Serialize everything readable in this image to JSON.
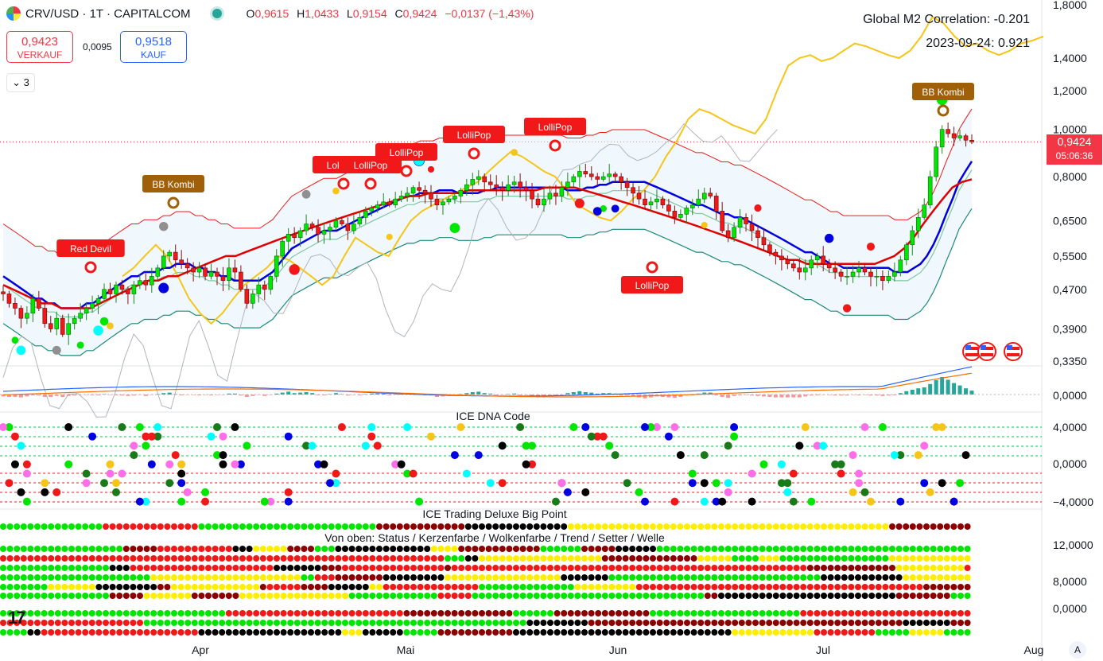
{
  "header": {
    "symbol": "CRV/USD · 1T · CAPITALCOM",
    "ohlc": [
      {
        "k": "O",
        "v": "0,9615"
      },
      {
        "k": "H",
        "v": "1,0433"
      },
      {
        "k": "L",
        "v": "0,9154"
      },
      {
        "k": "C",
        "v": "0,9424"
      },
      {
        "k": "",
        "v": "−0,0137 (−1,43%)"
      }
    ]
  },
  "trade": {
    "sell_price": "0,9423",
    "sell_label": "VERKAUF",
    "spread": "0,0095",
    "buy_price": "0,9518",
    "buy_label": "KAUF"
  },
  "indicator_toggle": "3",
  "m2": {
    "line1": "Global M2 Correlation: -0.201",
    "line2": "2023-09-24: 0.921"
  },
  "current_price": {
    "value": "0,9424",
    "countdown": "05:06:36"
  },
  "panes": {
    "dna_title": "ICE DNA Code",
    "deluxe_title": "ICE Trading Deluxe Big Point",
    "deluxe_sub": "Von oben: Status / Kerzenfarbe / Wolkenfarbe / Trend / Setter / Welle"
  },
  "axis_right": {
    "price": [
      "1,8000",
      "1,4000",
      "1,2000",
      "1,0000",
      "0,8000",
      "0,6500",
      "0,5500",
      "0,4700",
      "0,3900",
      "0,3350"
    ],
    "macd": [
      "0,0000"
    ],
    "dna": [
      "4,0000",
      "0,0000",
      "−4,0000"
    ],
    "deluxe": [
      "12,0000",
      "8,0000",
      "0,0000"
    ]
  },
  "months": [
    "Apr",
    "Mai",
    "Jun",
    "Jul",
    "Aug"
  ],
  "labels": [
    {
      "text": "BB Kombi",
      "color": "#a0600a"
    },
    {
      "text": "Red Devil",
      "color": "#f01818"
    },
    {
      "text": "LolliPop",
      "color": "#f01818"
    },
    {
      "text": "LolliPop",
      "color": "#f01818"
    },
    {
      "text": "LolliPop",
      "color": "#f01818"
    },
    {
      "text": "LolliPop",
      "color": "#f01818"
    },
    {
      "text": "LolliPop",
      "color": "#f01818"
    },
    {
      "text": "LolliPop",
      "color": "#f01818"
    },
    {
      "text": "BB Kombi",
      "color": "#a0600a"
    }
  ],
  "colors": {
    "up": "#00e600",
    "down": "#f01818",
    "blue_line": "#0000e0",
    "red_line": "#e00000",
    "gold_line": "#f5c518",
    "gray_line": "#b0b4bc"
  },
  "chart_data": {
    "type": "candlestick",
    "price_scale": "log",
    "x_range": [
      "2024-03-06",
      "2024-07-23"
    ],
    "ylim": [
      0.335,
      1.8
    ],
    "last_candle": {
      "open": 0.9615,
      "high": 1.0433,
      "low": 0.9154,
      "close": 0.9424
    },
    "close": [
      0.46,
      0.44,
      0.43,
      0.41,
      0.42,
      0.45,
      0.43,
      0.4,
      0.39,
      0.41,
      0.38,
      0.4,
      0.41,
      0.42,
      0.43,
      0.44,
      0.45,
      0.47,
      0.46,
      0.48,
      0.47,
      0.46,
      0.48,
      0.49,
      0.48,
      0.5,
      0.52,
      0.55,
      0.56,
      0.54,
      0.53,
      0.52,
      0.51,
      0.52,
      0.5,
      0.51,
      0.5,
      0.49,
      0.52,
      0.51,
      0.47,
      0.44,
      0.46,
      0.48,
      0.47,
      0.5,
      0.55,
      0.59,
      0.61,
      0.6,
      0.62,
      0.64,
      0.63,
      0.61,
      0.62,
      0.63,
      0.65,
      0.64,
      0.62,
      0.64,
      0.66,
      0.68,
      0.69,
      0.7,
      0.71,
      0.7,
      0.72,
      0.73,
      0.74,
      0.76,
      0.75,
      0.74,
      0.72,
      0.7,
      0.71,
      0.72,
      0.73,
      0.75,
      0.77,
      0.79,
      0.8,
      0.78,
      0.77,
      0.76,
      0.75,
      0.77,
      0.78,
      0.76,
      0.75,
      0.72,
      0.7,
      0.72,
      0.74,
      0.73,
      0.76,
      0.78,
      0.8,
      0.82,
      0.81,
      0.8,
      0.79,
      0.8,
      0.81,
      0.8,
      0.78,
      0.76,
      0.74,
      0.72,
      0.7,
      0.71,
      0.72,
      0.7,
      0.68,
      0.66,
      0.67,
      0.69,
      0.7,
      0.72,
      0.74,
      0.73,
      0.68,
      0.62,
      0.6,
      0.63,
      0.66,
      0.64,
      0.62,
      0.6,
      0.58,
      0.56,
      0.55,
      0.54,
      0.53,
      0.52,
      0.51,
      0.52,
      0.54,
      0.55,
      0.53,
      0.52,
      0.51,
      0.5,
      0.5,
      0.51,
      0.52,
      0.51,
      0.5,
      0.5,
      0.49,
      0.5,
      0.51,
      0.54,
      0.58,
      0.62,
      0.66,
      0.7,
      0.8,
      0.92,
      1.0,
      0.98,
      0.96,
      0.97,
      0.95,
      0.9424
    ],
    "series": [
      {
        "name": "",
        "values": [
          0.5,
          0.49,
          0.48,
          0.47,
          0.46,
          0.45,
          0.45,
          0.44,
          0.44,
          0.43,
          0.43,
          0.43,
          0.43,
          0.44,
          0.44,
          0.45,
          0.46,
          0.47,
          0.48,
          0.49,
          0.5,
          0.5,
          0.51,
          0.51,
          0.51,
          0.52,
          0.52,
          0.53,
          0.53,
          0.53,
          0.52,
          0.52,
          0.51,
          0.51,
          0.5,
          0.5,
          0.49,
          0.49,
          0.49,
          0.49,
          0.49,
          0.5,
          0.51,
          0.53,
          0.55,
          0.57,
          0.58,
          0.59,
          0.6,
          0.61,
          0.62,
          0.62,
          0.62,
          0.63,
          0.64,
          0.65,
          0.66,
          0.67,
          0.68,
          0.69,
          0.7,
          0.71,
          0.72,
          0.73,
          0.73,
          0.74,
          0.74,
          0.74,
          0.75,
          0.75,
          0.75,
          0.74,
          0.74,
          0.74,
          0.74,
          0.75,
          0.75,
          0.76,
          0.76,
          0.76,
          0.76,
          0.76,
          0.76,
          0.76,
          0.76,
          0.76,
          0.76,
          0.76,
          0.75,
          0.75,
          0.75,
          0.76,
          0.76,
          0.77,
          0.77,
          0.78,
          0.78,
          0.78,
          0.78,
          0.78,
          0.78,
          0.77,
          0.76,
          0.75,
          0.74,
          0.73,
          0.72,
          0.71,
          0.7,
          0.7,
          0.69,
          0.68,
          0.67,
          0.67,
          0.66,
          0.66,
          0.65,
          0.64,
          0.63,
          0.62,
          0.61,
          0.6,
          0.59,
          0.58,
          0.57,
          0.56,
          0.56,
          0.55,
          0.54,
          0.53,
          0.53,
          0.52,
          0.52,
          0.52,
          0.52,
          0.52,
          0.52,
          0.52,
          0.52,
          0.51,
          0.51,
          0.51,
          0.52,
          0.53,
          0.55,
          0.58,
          0.62,
          0.67,
          0.72,
          0.78,
          0.82,
          0.86
        ]
      },
      {
        "name": "",
        "values": [
          0.48,
          0.47,
          0.46,
          0.45,
          0.44,
          0.44,
          0.43,
          0.43,
          0.43,
          0.43,
          0.44,
          0.45,
          0.46,
          0.47,
          0.48,
          0.49,
          0.49,
          0.5,
          0.5,
          0.51,
          0.52,
          0.53,
          0.54,
          0.55,
          0.55,
          0.56,
          0.57,
          0.58,
          0.59,
          0.6,
          0.61,
          0.62,
          0.63,
          0.64,
          0.65,
          0.66,
          0.67,
          0.68,
          0.69,
          0.7,
          0.71,
          0.72,
          0.73,
          0.73,
          0.74,
          0.74,
          0.74,
          0.74,
          0.75,
          0.75,
          0.75,
          0.75,
          0.75,
          0.75,
          0.75,
          0.75,
          0.76,
          0.76,
          0.76,
          0.76,
          0.75,
          0.74,
          0.73,
          0.72,
          0.71,
          0.7,
          0.69,
          0.68,
          0.67,
          0.66,
          0.65,
          0.64,
          0.63,
          0.62,
          0.61,
          0.6,
          0.59,
          0.58,
          0.57,
          0.56,
          0.55,
          0.54,
          0.54,
          0.53,
          0.53,
          0.53,
          0.53,
          0.53,
          0.53,
          0.53,
          0.53,
          0.54,
          0.55,
          0.57,
          0.6,
          0.64,
          0.68,
          0.72,
          0.76,
          0.78,
          0.79
        ]
      },
      {
        "name": "",
        "values": [
          0.5,
          0.52,
          0.55,
          0.58,
          0.55,
          0.5,
          0.45,
          0.42,
          0.4,
          0.42,
          0.45,
          0.48,
          0.5,
          0.52,
          0.55,
          0.54,
          0.52,
          0.5,
          0.48,
          0.5,
          0.55,
          0.6,
          0.58,
          0.56,
          0.55,
          0.6,
          0.65,
          0.68,
          0.7,
          0.72,
          0.74,
          0.76,
          0.78,
          0.82,
          0.86,
          0.9,
          0.88,
          0.85,
          0.82,
          0.8,
          0.75,
          0.7,
          0.68,
          0.66,
          0.65,
          0.68,
          0.72,
          0.75,
          0.8,
          0.88,
          0.95,
          1.05,
          1.1,
          1.08,
          1.05,
          1.02,
          1.0,
          0.98,
          1.05,
          1.2,
          1.35,
          1.4,
          1.42,
          1.38,
          1.4,
          1.45,
          1.5,
          1.48,
          1.45,
          1.42,
          1.4,
          1.45,
          1.55,
          1.7,
          1.65,
          1.55,
          1.48,
          1.5,
          1.45,
          1.42,
          1.45,
          1.5,
          1.52,
          1.55
        ]
      }
    ]
  }
}
